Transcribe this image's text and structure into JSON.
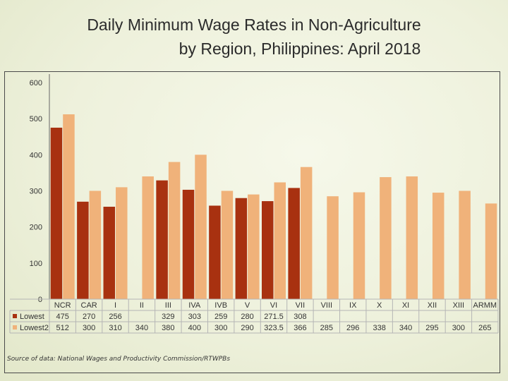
{
  "title": {
    "line1": "Daily Minimum Wage Rates in Non-Agriculture",
    "line2": "by Region, Philippines: April 2018"
  },
  "source": "Source of data: National Wages and Productivity Commission/RTWPBs",
  "colors": {
    "lowest": "#a83110",
    "lowest2": "#f0b27a",
    "grid": "#b5b5b5",
    "text": "#333333"
  },
  "chart_data": {
    "type": "bar",
    "title": "Daily Minimum Wage Rates in Non-Agriculture by Region, Philippines: April 2018",
    "categories": [
      "NCR",
      "CAR",
      "I",
      "II",
      "III",
      "IVA",
      "IVB",
      "V",
      "VI",
      "VII",
      "VIII",
      "IX",
      "X",
      "XI",
      "XII",
      "XIII",
      "ARMM"
    ],
    "y_ticks": [
      "0",
      "100",
      "200",
      "300",
      "400",
      "500",
      "600"
    ],
    "ylim": [
      0,
      600
    ],
    "grid": false,
    "legend": "table-left",
    "series": [
      {
        "name": "Lowest",
        "values": [
          475,
          270,
          256,
          null,
          329,
          303,
          259,
          280,
          271.5,
          308,
          null,
          null,
          null,
          null,
          null,
          null,
          null
        ],
        "labels": [
          "475",
          "270",
          "256",
          "",
          "329",
          "303",
          "259",
          "280",
          "271.5",
          "308",
          "",
          "",
          "",
          "",
          "",
          "",
          ""
        ]
      },
      {
        "name": "Lowest2",
        "values": [
          512,
          300,
          310,
          340,
          380,
          400,
          300,
          290,
          323.5,
          366,
          285,
          296,
          338,
          340,
          295,
          300,
          265
        ],
        "labels": [
          "512",
          "300",
          "310",
          "340",
          "380",
          "400",
          "300",
          "290",
          "323.5",
          "366",
          "285",
          "296",
          "338",
          "340",
          "295",
          "300",
          "265"
        ]
      }
    ]
  }
}
